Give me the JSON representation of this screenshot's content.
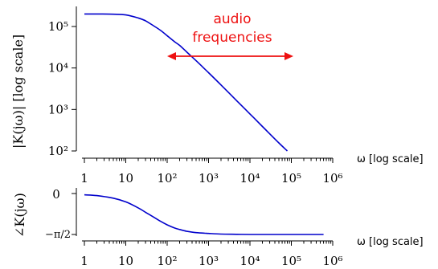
{
  "chart_data": [
    {
      "type": "line",
      "title": "",
      "xlabel": "ω [log scale]",
      "ylabel": "|K(jω)| [log scale]",
      "x_scale": "log",
      "y_scale": "log",
      "xlim": [
        1,
        1000000
      ],
      "ylim": [
        100,
        200000
      ],
      "x_ticks": [
        "1",
        "10",
        "10²",
        "10³",
        "10⁴",
        "10⁵",
        "10⁶"
      ],
      "y_ticks": [
        "10²",
        "10³",
        "10⁴",
        "10⁵"
      ],
      "series": [
        {
          "color": "#0000cc",
          "x": [
            1,
            2,
            5,
            10,
            20,
            30,
            50,
            70,
            100,
            150,
            200,
            300,
            500,
            1000,
            2000,
            5000,
            10000,
            20000,
            50000,
            80000
          ],
          "y": [
            200000,
            200000,
            198000,
            190000,
            160000,
            137000,
            100000,
            80000,
            60000,
            43000,
            35000,
            24000,
            15000,
            7700,
            3900,
            1560,
            780,
            390,
            156,
            100
          ]
        }
      ],
      "annotation": {
        "text_lines": [
          "audio",
          "frequencies"
        ],
        "color": "#ee1111",
        "range_x": [
          100,
          100000
        ]
      }
    },
    {
      "type": "line",
      "title": "",
      "xlabel": "ω [log scale]",
      "ylabel": "∠K(jω)",
      "x_scale": "log",
      "xlim": [
        1,
        1000000
      ],
      "ylim": [
        -1.5708,
        0
      ],
      "x_ticks": [
        "1",
        "10",
        "10²",
        "10³",
        "10⁴",
        "10⁵",
        "10⁶"
      ],
      "y_ticks": [
        "0",
        "−π/2"
      ],
      "series": [
        {
          "color": "#0000cc",
          "x": [
            1,
            2,
            5,
            10,
            20,
            30,
            50,
            70,
            100,
            150,
            200,
            300,
            500,
            1000,
            2000,
            5000,
            10000,
            100000,
            600000
          ],
          "y": [
            -0.05,
            -0.08,
            -0.18,
            -0.32,
            -0.55,
            -0.72,
            -0.93,
            -1.07,
            -1.2,
            -1.32,
            -1.38,
            -1.45,
            -1.5,
            -1.53,
            -1.555,
            -1.565,
            -1.57,
            -1.57,
            -1.57
          ]
        }
      ]
    }
  ]
}
